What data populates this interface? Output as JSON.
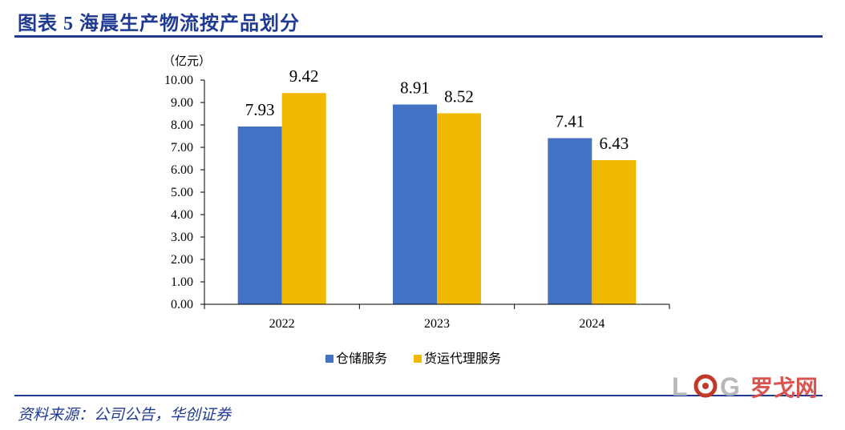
{
  "figure": {
    "title": "图表 5   海晨生产物流按产品划分",
    "source": "资料来源：公司公告，华创证券"
  },
  "logo": {
    "text": "罗戈网",
    "mark": "LOG"
  },
  "chart_data": {
    "type": "bar",
    "unit": "（亿元）",
    "categories": [
      "2022",
      "2023",
      "2024"
    ],
    "series": [
      {
        "name": "仓储服务",
        "values": [
          7.93,
          8.91,
          7.41
        ],
        "color": "#4472c4"
      },
      {
        "name": "货运代理服务",
        "values": [
          9.42,
          8.52,
          6.43
        ],
        "color": "#f0b800"
      }
    ],
    "ylim": [
      0,
      10
    ],
    "yticks": [
      "0.00",
      "1.00",
      "2.00",
      "3.00",
      "4.00",
      "5.00",
      "6.00",
      "7.00",
      "8.00",
      "9.00",
      "10.00"
    ],
    "grid": false,
    "legend": "bottom"
  }
}
